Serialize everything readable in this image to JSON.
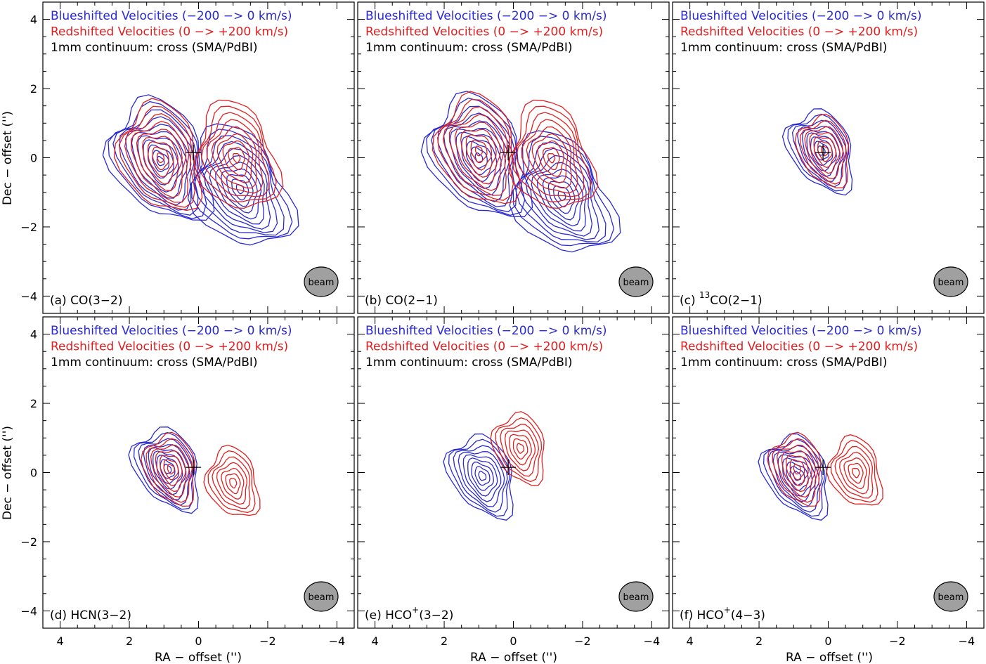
{
  "colors": {
    "blue": "#2a2ad2",
    "red": "#e02020",
    "black": "#000000",
    "beam_fill": "#a0a0a0"
  },
  "chart_data": {
    "type": "contour",
    "title": "",
    "xlabel": "RA − offset ('')",
    "ylabel": "Dec − offset ('')",
    "xlim": [
      4.5,
      -4.5
    ],
    "ylim": [
      -4.5,
      4.5
    ],
    "xticks": [
      "4",
      "2",
      "0",
      "−2",
      "−4"
    ],
    "yticks": [
      "4",
      "2",
      "0",
      "−2",
      "−4"
    ],
    "legend": [
      {
        "name": "Blueshifted Velocities (−200 −> 0 km/s)",
        "color": "#2a2ad2"
      },
      {
        "name": "Redshifted Velocities (0 −> +200 km/s)",
        "color": "#e02020"
      },
      {
        "name": "1mm continuum: cross (SMA/PdBI)",
        "color": "#000000"
      }
    ],
    "continuum_cross": {
      "ra": 0.15,
      "dec": 0.15
    },
    "beam_label": "beam",
    "panels": [
      {
        "id": "a",
        "prefix": "(a) CO(3−2)",
        "sup": "",
        "suffix": "",
        "blue_peaks": [
          {
            "ra": 1.1,
            "dec": -0.1
          },
          {
            "ra": -1.2,
            "dec": -0.9
          }
        ],
        "red_peaks": [
          {
            "ra": 1.1,
            "dec": 0.0
          },
          {
            "ra": -1.1,
            "dec": 0.0
          }
        ]
      },
      {
        "id": "b",
        "prefix": "(b) CO(2−1)",
        "sup": "",
        "suffix": "",
        "blue_peaks": [
          {
            "ra": 1.0,
            "dec": 0.0
          },
          {
            "ra": -1.4,
            "dec": -1.1
          }
        ],
        "red_peaks": [
          {
            "ra": 1.0,
            "dec": 0.2
          },
          {
            "ra": -1.1,
            "dec": 0.0
          }
        ]
      },
      {
        "id": "c",
        "prefix": "(c) ",
        "sup": "13",
        "suffix": "CO(2−1)",
        "blue_peaks": [
          {
            "ra": 0.2,
            "dec": 0.2
          }
        ],
        "red_peaks": [
          {
            "ra": 0.1,
            "dec": 0.2
          }
        ]
      },
      {
        "id": "d",
        "prefix": "(d) HCN(3−2)",
        "sup": "",
        "suffix": "",
        "blue_peaks": [
          {
            "ra": 0.9,
            "dec": 0.1
          }
        ],
        "red_peaks": [
          {
            "ra": 0.8,
            "dec": 0.1
          },
          {
            "ra": -1.0,
            "dec": -0.3
          }
        ]
      },
      {
        "id": "e",
        "prefix": "(e) HCO",
        "sup": "+",
        "suffix": "(3−2)",
        "blue_peaks": [
          {
            "ra": 0.9,
            "dec": -0.1
          }
        ],
        "red_peaks": [
          {
            "ra": -0.2,
            "dec": 0.7
          }
        ]
      },
      {
        "id": "f",
        "prefix": "(f) HCO",
        "sup": "+",
        "suffix": "(4−3)",
        "blue_peaks": [
          {
            "ra": 0.9,
            "dec": -0.1
          }
        ],
        "red_peaks": [
          {
            "ra": 0.9,
            "dec": 0.1
          },
          {
            "ra": -0.8,
            "dec": 0.0
          }
        ]
      }
    ]
  }
}
